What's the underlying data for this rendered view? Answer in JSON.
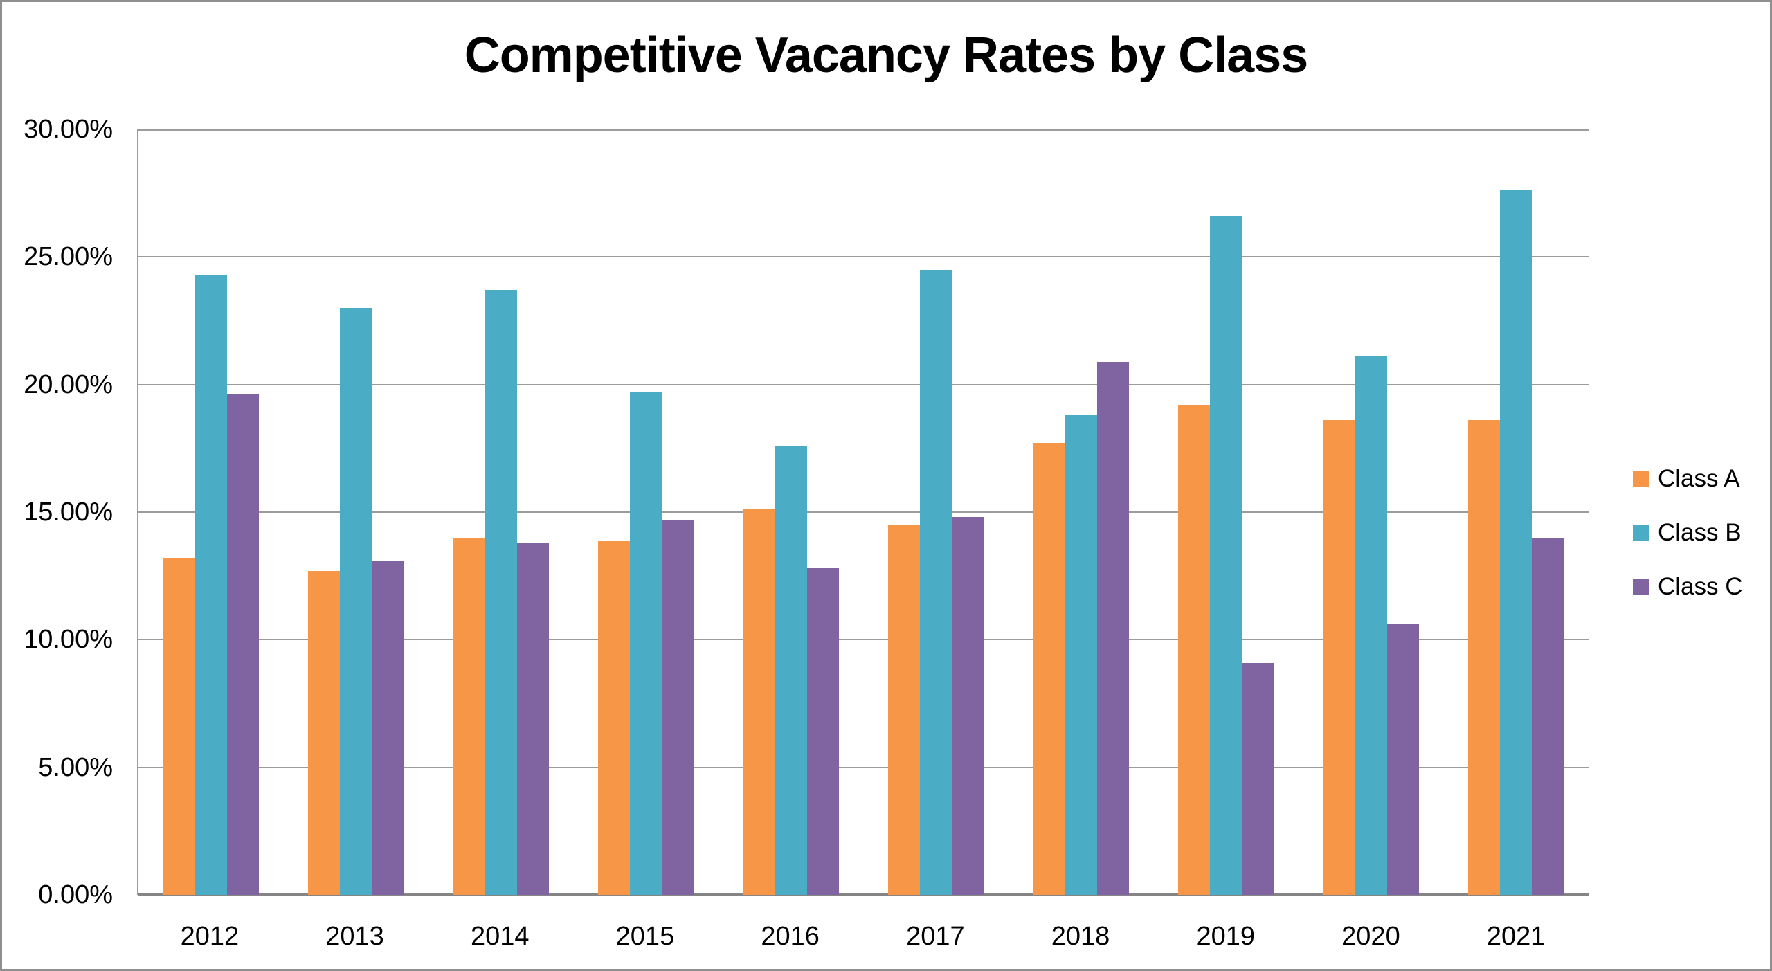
{
  "title": "Competitive Vacancy Rates by Class",
  "colors": {
    "frame_border": "#8f8f8f",
    "gridline": "#9c9c9c",
    "axis_line": "#858585",
    "background": "#ffffff",
    "text": "#000000"
  },
  "chart_data": {
    "type": "bar",
    "title": "Competitive Vacancy Rates by Class",
    "categories": [
      "2012",
      "2013",
      "2014",
      "2015",
      "2016",
      "2017",
      "2018",
      "2019",
      "2020",
      "2021"
    ],
    "series": [
      {
        "name": "Class A",
        "color": "#F79646",
        "values": [
          13.2,
          12.7,
          14.0,
          13.9,
          15.1,
          14.5,
          17.7,
          19.2,
          18.6,
          18.6
        ]
      },
      {
        "name": "Class B",
        "color": "#4BACC6",
        "values": [
          24.3,
          23.0,
          23.7,
          19.7,
          17.6,
          24.5,
          18.8,
          26.6,
          21.1,
          27.6
        ]
      },
      {
        "name": "Class C",
        "color": "#8064A2",
        "values": [
          19.6,
          13.1,
          13.8,
          14.7,
          12.8,
          14.8,
          20.9,
          9.1,
          10.6,
          14.0
        ]
      }
    ],
    "xlabel": "",
    "ylabel": "",
    "ylim": [
      0,
      30
    ],
    "ytick_step": 5,
    "y_tick_labels": [
      "0.00%",
      "5.00%",
      "10.00%",
      "15.00%",
      "20.00%",
      "25.00%",
      "30.00%"
    ],
    "grid": true,
    "legend_position": "right"
  },
  "legend": {
    "items": [
      {
        "label": "Class A",
        "color": "#F79646"
      },
      {
        "label": "Class B",
        "color": "#4BACC6"
      },
      {
        "label": "Class C",
        "color": "#8064A2"
      }
    ]
  }
}
